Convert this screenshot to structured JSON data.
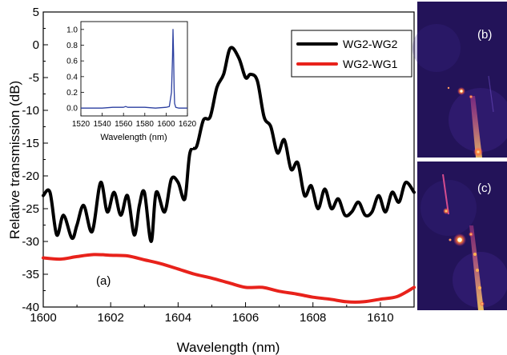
{
  "chart_data": [
    {
      "type": "line",
      "panel_label": "(a)",
      "title": "",
      "xlabel": "Wavelength (nm)",
      "ylabel": "Relative transmission (dB)",
      "xlim": [
        1600,
        1611
      ],
      "ylim": [
        -40,
        5
      ],
      "xticks": [
        "1600",
        "1602",
        "1604",
        "1606",
        "1608",
        "1610"
      ],
      "yticks": [
        "5",
        "0",
        "-5",
        "-10",
        "-15",
        "-20",
        "-25",
        "-30",
        "-35",
        "-40"
      ],
      "legend_position": "top-right",
      "series": [
        {
          "name": "WG2-WG2",
          "color": "#000000",
          "x": [
            1600,
            1600.2,
            1600.4,
            1600.6,
            1600.85,
            1601.0,
            1601.2,
            1601.45,
            1601.7,
            1601.9,
            1602.1,
            1602.3,
            1602.5,
            1602.7,
            1602.85,
            1603.0,
            1603.2,
            1603.35,
            1603.6,
            1603.8,
            1604.0,
            1604.2,
            1604.35,
            1604.55,
            1604.75,
            1604.95,
            1605.15,
            1605.35,
            1605.55,
            1605.8,
            1606.0,
            1606.15,
            1606.35,
            1606.55,
            1606.75,
            1606.95,
            1607.15,
            1607.35,
            1607.55,
            1607.75,
            1607.95,
            1608.15,
            1608.35,
            1608.55,
            1608.75,
            1608.95,
            1609.15,
            1609.35,
            1609.55,
            1609.75,
            1609.95,
            1610.15,
            1610.35,
            1610.55,
            1610.75,
            1611.0
          ],
          "values": [
            -23.0,
            -22.5,
            -29.0,
            -26.0,
            -29.5,
            -27.5,
            -24.5,
            -28.5,
            -21.0,
            -25.5,
            -22.5,
            -26.0,
            -23.0,
            -29.0,
            -24.5,
            -22.5,
            -30.0,
            -22.5,
            -25.5,
            -20.5,
            -21.0,
            -23.5,
            -16.5,
            -15.5,
            -11.5,
            -11.0,
            -6.5,
            -4.5,
            -0.5,
            -2.0,
            -5.0,
            -4.5,
            -5.5,
            -11.0,
            -12.5,
            -16.5,
            -14.5,
            -19.0,
            -18.0,
            -23.0,
            -21.5,
            -25.0,
            -22.0,
            -25.0,
            -23.5,
            -26.0,
            -25.5,
            -24.0,
            -26.0,
            -25.5,
            -23.0,
            -25.5,
            -22.5,
            -24.0,
            -21.0,
            -22.5
          ]
        },
        {
          "name": "WG2-WG1",
          "color": "#e8221b",
          "x": [
            1600,
            1600.5,
            1601.0,
            1601.5,
            1602.0,
            1602.5,
            1603.0,
            1603.5,
            1604.0,
            1604.5,
            1605.0,
            1605.5,
            1606.0,
            1606.5,
            1607.0,
            1607.5,
            1608.0,
            1608.5,
            1609.0,
            1609.5,
            1610.0,
            1610.5,
            1611.0
          ],
          "values": [
            -32.5,
            -32.7,
            -32.3,
            -32.0,
            -32.1,
            -32.2,
            -32.8,
            -33.4,
            -34.2,
            -35.0,
            -35.6,
            -36.3,
            -37.0,
            -37.0,
            -37.6,
            -38.0,
            -38.5,
            -38.8,
            -39.2,
            -39.2,
            -38.8,
            -38.4,
            -37.0
          ]
        }
      ]
    },
    {
      "type": "line",
      "title": "",
      "xlabel": "Wavelength (nm)",
      "ylabel": "",
      "xlim": [
        1520,
        1620
      ],
      "ylim": [
        -0.1,
        1.1
      ],
      "xticks": [
        "1520",
        "1540",
        "1560",
        "1580",
        "1600",
        "1620"
      ],
      "yticks": [
        "0.0",
        "0.2",
        "0.4",
        "0.6",
        "0.8",
        "1.0"
      ],
      "series": [
        {
          "color": "#2b3fa0",
          "x": [
            1520,
            1530,
            1540,
            1550,
            1560,
            1562,
            1564,
            1570,
            1580,
            1590,
            1600,
            1603,
            1605,
            1606,
            1606.5,
            1607,
            1607.5,
            1608,
            1609,
            1612,
            1616,
            1620
          ],
          "values": [
            0.0,
            0.0,
            0.0,
            0.01,
            0.01,
            0.02,
            0.01,
            0.01,
            0.01,
            0.0,
            0.01,
            0.02,
            0.2,
            0.65,
            1.0,
            0.7,
            0.25,
            0.06,
            0.01,
            0.0,
            0.0,
            0.0
          ]
        }
      ]
    }
  ],
  "photos": [
    {
      "label": "(b)"
    },
    {
      "label": "(c)"
    }
  ]
}
